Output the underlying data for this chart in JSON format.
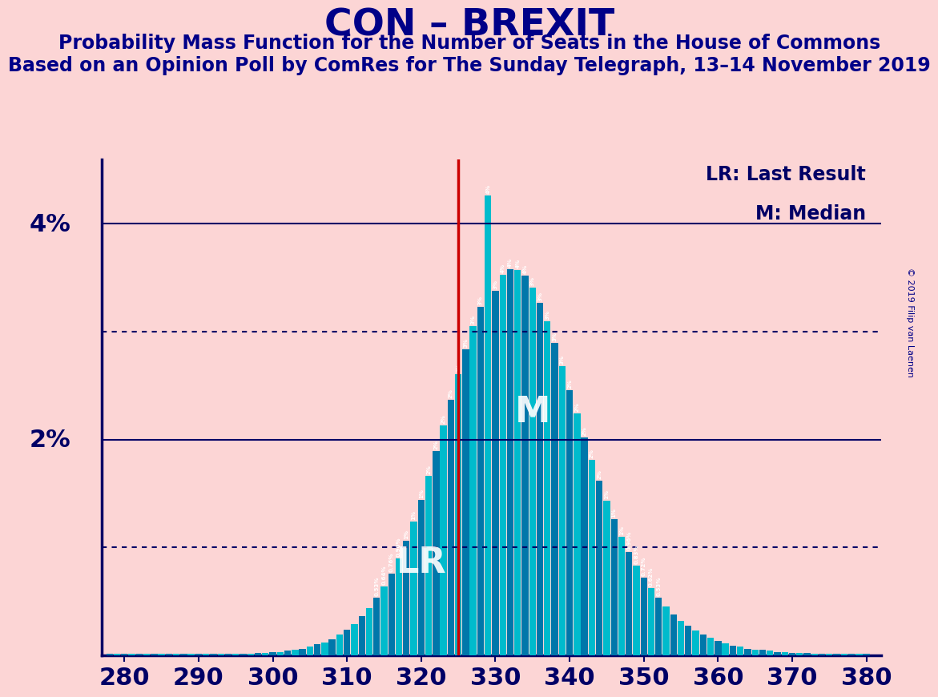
{
  "title": "CON – BREXIT",
  "subtitle1": "Probability Mass Function for the Number of Seats in the House of Commons",
  "subtitle2": "Based on an Opinion Poll by ComRes for The Sunday Telegraph, 13–14 November 2019",
  "copyright": "© 2019 Filip van Laenen",
  "bg_color": "#fcd5d5",
  "bar_color_dark": "#0077aa",
  "bar_color_light": "#00bbcc",
  "title_color": "#000088",
  "axis_color": "#000066",
  "lr_line_color": "#cc0000",
  "lr_label": "LR",
  "median_label": "M",
  "lr_seat": 325,
  "median_seat": 334,
  "x_min": 277,
  "x_max": 382,
  "y_max": 0.046,
  "solid_hline_y": [
    0.02,
    0.04
  ],
  "dotted_hline_y": [
    0.01,
    0.03
  ],
  "seats": [
    278,
    279,
    280,
    281,
    282,
    283,
    284,
    285,
    286,
    287,
    288,
    289,
    290,
    291,
    292,
    293,
    294,
    295,
    296,
    297,
    298,
    299,
    300,
    301,
    302,
    303,
    304,
    305,
    306,
    307,
    308,
    309,
    310,
    311,
    312,
    313,
    314,
    315,
    316,
    317,
    318,
    319,
    320,
    321,
    322,
    323,
    324,
    325,
    326,
    327,
    328,
    329,
    330,
    331,
    332,
    333,
    334,
    335,
    336,
    337,
    338,
    339,
    340,
    341,
    342,
    343,
    344,
    345,
    346,
    347,
    348,
    349,
    350,
    351,
    352,
    353,
    354,
    355,
    356,
    357,
    358,
    359,
    360,
    361,
    362,
    363,
    364,
    365,
    366,
    367,
    368,
    369,
    370,
    371,
    372,
    373,
    374,
    375,
    376,
    377,
    378,
    379,
    380
  ],
  "probs": [
    0.0001,
    0.0001,
    0.0001,
    0.0001,
    0.0001,
    0.0001,
    0.0001,
    0.0001,
    0.0001,
    0.0001,
    0.0001,
    0.0001,
    0.0001,
    0.0001,
    0.0001,
    0.0001,
    0.0001,
    0.0001,
    0.0001,
    0.0001,
    0.0002,
    0.0002,
    0.0003,
    0.0003,
    0.0004,
    0.0005,
    0.0006,
    0.0008,
    0.001,
    0.0012,
    0.0015,
    0.0019,
    0.0024,
    0.0029,
    0.0036,
    0.0044,
    0.0053,
    0.0064,
    0.0076,
    0.009,
    0.0106,
    0.0124,
    0.0144,
    0.0166,
    0.0189,
    0.0213,
    0.0237,
    0.0261,
    0.0284,
    0.0305,
    0.0323,
    0.0426,
    0.0338,
    0.0353,
    0.0358,
    0.0357,
    0.0352,
    0.0341,
    0.0327,
    0.031,
    0.029,
    0.0268,
    0.0246,
    0.0224,
    0.0202,
    0.0181,
    0.0162,
    0.0143,
    0.0126,
    0.011,
    0.0096,
    0.0083,
    0.0072,
    0.0062,
    0.0053,
    0.0045,
    0.0038,
    0.0032,
    0.0027,
    0.0023,
    0.0019,
    0.0016,
    0.0013,
    0.0011,
    0.0009,
    0.0008,
    0.0006,
    0.0005,
    0.0005,
    0.0004,
    0.0003,
    0.0003,
    0.0002,
    0.0002,
    0.0002,
    0.0001,
    0.0001,
    0.0001,
    0.0001,
    0.0001,
    0.0001,
    0.0001,
    0.0001
  ]
}
